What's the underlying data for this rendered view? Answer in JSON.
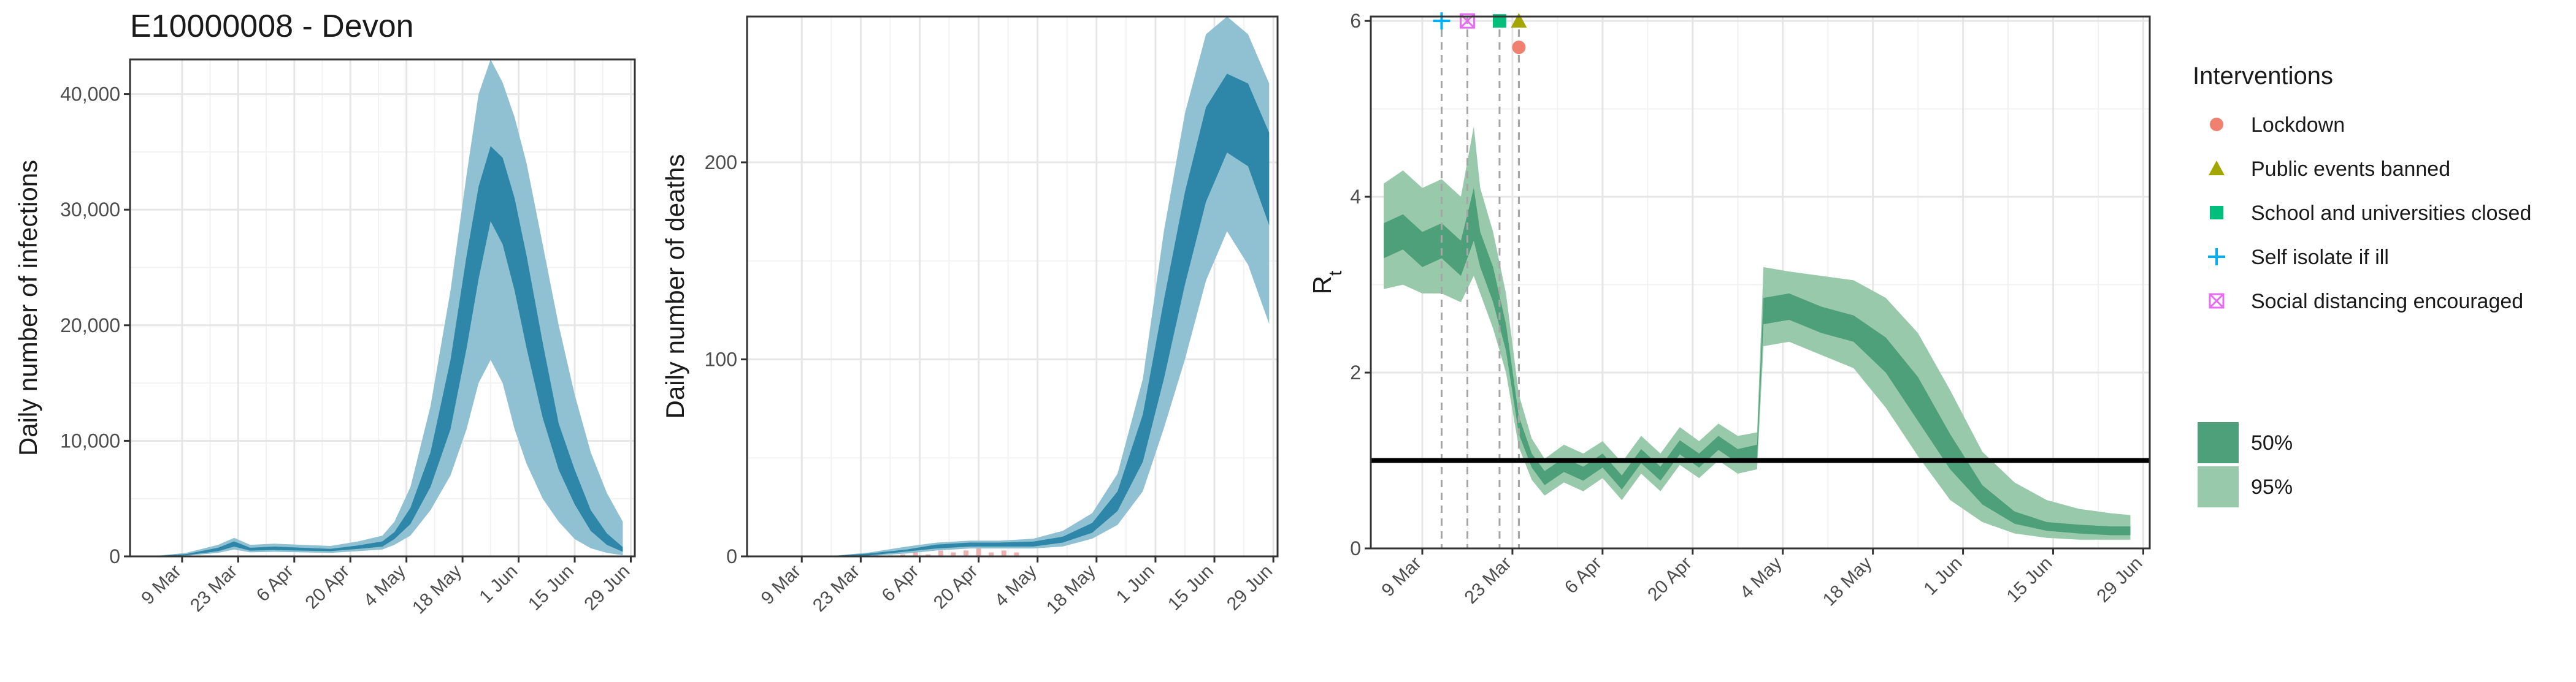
{
  "figure_title": "E10000008 - Devon",
  "colors": {
    "infections_inner": "#2e86a8",
    "infections_outer": "#8fc1d3",
    "rt_inner": "#4ea07a",
    "rt_outer": "#98c9ab",
    "lockdown": "#f08070",
    "public_events": "#a3a500",
    "schools": "#00bf7d",
    "self_isolate": "#00b0f6",
    "social_distancing": "#e76bf3"
  },
  "chart_data": [
    {
      "type": "area",
      "ylabel": "Daily number of infections",
      "xlabel": "",
      "x_ticks": [
        "9 Mar",
        "23 Mar",
        "6 Apr",
        "20 Apr",
        "4 May",
        "18 May",
        "1 Jun",
        "15 Jun",
        "29 Jun"
      ],
      "y_ticks": [
        "0",
        "10,000",
        "20,000",
        "30,000",
        "40,000"
      ],
      "ylim": [
        0,
        43000
      ],
      "x_start": "2020-02-25",
      "x_end": "2020-06-30",
      "grid": true,
      "series": [
        {
          "x": [
            "2020-03-01",
            "2020-03-10",
            "2020-03-18",
            "2020-03-22",
            "2020-03-26",
            "2020-04-01",
            "2020-04-08",
            "2020-04-15",
            "2020-04-22",
            "2020-04-28",
            "2020-05-01",
            "2020-05-05",
            "2020-05-10",
            "2020-05-15",
            "2020-05-19",
            "2020-05-22",
            "2020-05-25",
            "2020-05-28",
            "2020-05-31",
            "2020-06-03",
            "2020-06-07",
            "2020-06-11",
            "2020-06-15",
            "2020-06-19",
            "2020-06-23",
            "2020-06-27"
          ],
          "mid": [
            0,
            150,
            600,
            1100,
            600,
            700,
            600,
            550,
            800,
            1100,
            1800,
            3500,
            7500,
            14000,
            22000,
            28000,
            32000,
            31000,
            27000,
            22000,
            15000,
            9500,
            6000,
            3000,
            1500,
            600
          ],
          "p25_lo": [
            0,
            100,
            450,
            850,
            500,
            550,
            500,
            450,
            650,
            850,
            1500,
            2800,
            6000,
            11000,
            18000,
            24000,
            29000,
            27000,
            23000,
            18000,
            12000,
            7500,
            4500,
            2200,
            1000,
            400
          ],
          "p25_hi": [
            0,
            200,
            750,
            1300,
            750,
            850,
            750,
            650,
            950,
            1300,
            2100,
            4200,
            9000,
            17000,
            26000,
            32000,
            35500,
            34500,
            31000,
            26000,
            18500,
            11500,
            7500,
            4000,
            2000,
            800
          ],
          "p95_lo": [
            0,
            50,
            300,
            600,
            350,
            400,
            350,
            300,
            450,
            600,
            1000,
            1800,
            4000,
            7000,
            11000,
            15000,
            17000,
            15000,
            11000,
            8000,
            5000,
            3000,
            1500,
            700,
            300,
            100
          ],
          "p95_hi": [
            0,
            300,
            1000,
            1600,
            1000,
            1100,
            1000,
            900,
            1300,
            1800,
            3000,
            6000,
            13000,
            23000,
            33000,
            40000,
            43000,
            41000,
            38000,
            34000,
            27000,
            20000,
            14000,
            9000,
            5500,
            3000
          ]
        }
      ]
    },
    {
      "type": "area",
      "ylabel": "Daily number of deaths",
      "xlabel": "",
      "x_ticks": [
        "9 Mar",
        "23 Mar",
        "6 Apr",
        "20 Apr",
        "4 May",
        "18 May",
        "1 Jun",
        "15 Jun",
        "29 Jun"
      ],
      "y_ticks": [
        "0",
        "100",
        "200"
      ],
      "ylim": [
        0,
        274
      ],
      "x_start": "2020-02-25",
      "x_end": "2020-06-30",
      "grid": true,
      "series": [
        {
          "x": [
            "2020-03-01",
            "2020-03-15",
            "2020-03-25",
            "2020-04-03",
            "2020-04-10",
            "2020-04-18",
            "2020-04-25",
            "2020-05-03",
            "2020-05-10",
            "2020-05-17",
            "2020-05-23",
            "2020-05-29",
            "2020-06-03",
            "2020-06-08",
            "2020-06-13",
            "2020-06-18",
            "2020-06-23",
            "2020-06-28"
          ],
          "mid": [
            0,
            0,
            1,
            3,
            5,
            6,
            6,
            6,
            8,
            14,
            28,
            60,
            110,
            160,
            205,
            230,
            225,
            200
          ],
          "p25_lo": [
            0,
            0,
            0.5,
            2.5,
            4,
            5,
            5,
            5,
            7,
            12,
            23,
            48,
            90,
            138,
            180,
            205,
            198,
            168
          ],
          "p25_hi": [
            0,
            0,
            1.5,
            3.5,
            6,
            7,
            7,
            7.5,
            10,
            17,
            33,
            72,
            130,
            185,
            228,
            245,
            240,
            215
          ],
          "p95_lo": [
            0,
            0,
            0.2,
            1.5,
            3,
            4,
            4,
            4,
            5,
            9,
            16,
            33,
            65,
            100,
            140,
            165,
            148,
            118
          ],
          "p95_hi": [
            0,
            0,
            2,
            5,
            7,
            8,
            8,
            9,
            13,
            22,
            42,
            90,
            165,
            225,
            265,
            274,
            265,
            240
          ]
        }
      ],
      "observed_deaths": {
        "x": [
          "2020-04-02",
          "2020-04-05",
          "2020-04-08",
          "2020-04-11",
          "2020-04-14",
          "2020-04-17",
          "2020-04-20",
          "2020-04-23",
          "2020-04-26",
          "2020-04-29"
        ],
        "values": [
          1,
          2,
          1,
          3,
          2,
          3,
          4,
          2,
          3,
          2
        ]
      }
    },
    {
      "type": "area",
      "ylabel": "R",
      "ylabel_sub": "t",
      "xlabel": "",
      "x_ticks": [
        "9 Mar",
        "23 Mar",
        "6 Apr",
        "20 Apr",
        "4 May",
        "18 May",
        "1 Jun",
        "15 Jun",
        "29 Jun"
      ],
      "y_ticks": [
        "0",
        "2",
        "4",
        "6"
      ],
      "ylim": [
        0,
        6.05
      ],
      "x_start": "2020-03-01",
      "x_end": "2020-06-30",
      "grid": true,
      "reference_line": 1,
      "series": [
        {
          "x": [
            "2020-03-03",
            "2020-03-06",
            "2020-03-09",
            "2020-03-12",
            "2020-03-15",
            "2020-03-17",
            "2020-03-18",
            "2020-03-20",
            "2020-03-22",
            "2020-03-24",
            "2020-03-26",
            "2020-03-28",
            "2020-03-31",
            "2020-04-03",
            "2020-04-06",
            "2020-04-09",
            "2020-04-12",
            "2020-04-15",
            "2020-04-18",
            "2020-04-21",
            "2020-04-24",
            "2020-04-27",
            "2020-04-30",
            "2020-05-01",
            "2020-05-05",
            "2020-05-10",
            "2020-05-15",
            "2020-05-20",
            "2020-05-25",
            "2020-05-30",
            "2020-06-04",
            "2020-06-09",
            "2020-06-14",
            "2020-06-19",
            "2020-06-24",
            "2020-06-27"
          ],
          "mid": [
            3.5,
            3.6,
            3.4,
            3.5,
            3.3,
            3.8,
            3.4,
            3.0,
            2.4,
            1.4,
            1.0,
            0.8,
            0.95,
            0.85,
            1.0,
            0.75,
            1.05,
            0.85,
            1.15,
            1.0,
            1.2,
            1.05,
            1.1,
            2.7,
            2.75,
            2.6,
            2.5,
            2.2,
            1.7,
            1.1,
            0.6,
            0.35,
            0.25,
            0.22,
            0.2,
            0.2
          ],
          "p25_lo": [
            3.3,
            3.4,
            3.2,
            3.3,
            3.1,
            3.5,
            3.2,
            2.8,
            2.25,
            1.3,
            0.92,
            0.72,
            0.87,
            0.77,
            0.92,
            0.67,
            0.97,
            0.77,
            1.07,
            0.92,
            1.12,
            0.97,
            1.02,
            2.55,
            2.6,
            2.45,
            2.35,
            2.0,
            1.45,
            0.9,
            0.5,
            0.28,
            0.2,
            0.17,
            0.15,
            0.15
          ],
          "p25_hi": [
            3.7,
            3.8,
            3.6,
            3.7,
            3.5,
            4.1,
            3.6,
            3.2,
            2.55,
            1.5,
            1.08,
            0.88,
            1.03,
            0.93,
            1.08,
            0.83,
            1.13,
            0.93,
            1.23,
            1.08,
            1.28,
            1.13,
            1.18,
            2.85,
            2.9,
            2.75,
            2.65,
            2.4,
            1.95,
            1.3,
            0.72,
            0.42,
            0.3,
            0.27,
            0.25,
            0.25
          ],
          "p95_lo": [
            2.95,
            3.0,
            2.9,
            2.9,
            2.8,
            3.1,
            2.9,
            2.5,
            2.0,
            1.15,
            0.78,
            0.6,
            0.75,
            0.65,
            0.8,
            0.55,
            0.85,
            0.65,
            0.95,
            0.8,
            1.0,
            0.85,
            0.9,
            2.3,
            2.35,
            2.2,
            2.05,
            1.6,
            1.05,
            0.55,
            0.3,
            0.17,
            0.12,
            0.1,
            0.1,
            0.1
          ],
          "p95_hi": [
            4.15,
            4.3,
            4.1,
            4.2,
            4.0,
            4.8,
            4.1,
            3.6,
            2.9,
            1.75,
            1.25,
            1.02,
            1.18,
            1.08,
            1.22,
            0.98,
            1.28,
            1.08,
            1.38,
            1.22,
            1.42,
            1.28,
            1.32,
            3.2,
            3.15,
            3.1,
            3.05,
            2.85,
            2.45,
            1.8,
            1.1,
            0.75,
            0.55,
            0.45,
            0.4,
            0.38
          ]
        }
      ],
      "interventions": [
        {
          "name": "Self isolate if ill",
          "date": "2020-03-12",
          "y": 6.0,
          "shape": "plus",
          "color_key": "self_isolate"
        },
        {
          "name": "Social distancing encouraged",
          "date": "2020-03-16",
          "y": 6.0,
          "shape": "square-x",
          "color_key": "social_distancing"
        },
        {
          "name": "School and universities closed",
          "date": "2020-03-21",
          "y": 6.0,
          "shape": "square",
          "color_key": "schools"
        },
        {
          "name": "Public events banned",
          "date": "2020-03-24",
          "y": 6.0,
          "shape": "triangle",
          "color_key": "public_events"
        },
        {
          "name": "Lockdown",
          "date": "2020-03-24",
          "y": 5.7,
          "shape": "circle",
          "color_key": "lockdown"
        }
      ]
    }
  ],
  "legend": {
    "interventions_title": "Interventions",
    "items": [
      {
        "label": "Lockdown",
        "shape": "circle",
        "color_key": "lockdown"
      },
      {
        "label": "Public events banned",
        "shape": "triangle",
        "color_key": "public_events"
      },
      {
        "label": "School and universities closed",
        "shape": "square",
        "color_key": "schools"
      },
      {
        "label": "Self isolate if ill",
        "shape": "plus",
        "color_key": "self_isolate"
      },
      {
        "label": "Social distancing encouraged",
        "shape": "square-x",
        "color_key": "social_distancing"
      }
    ],
    "bands": [
      {
        "label": "50%",
        "color_key": "rt_inner"
      },
      {
        "label": "95%",
        "color_key": "rt_outer"
      }
    ]
  }
}
